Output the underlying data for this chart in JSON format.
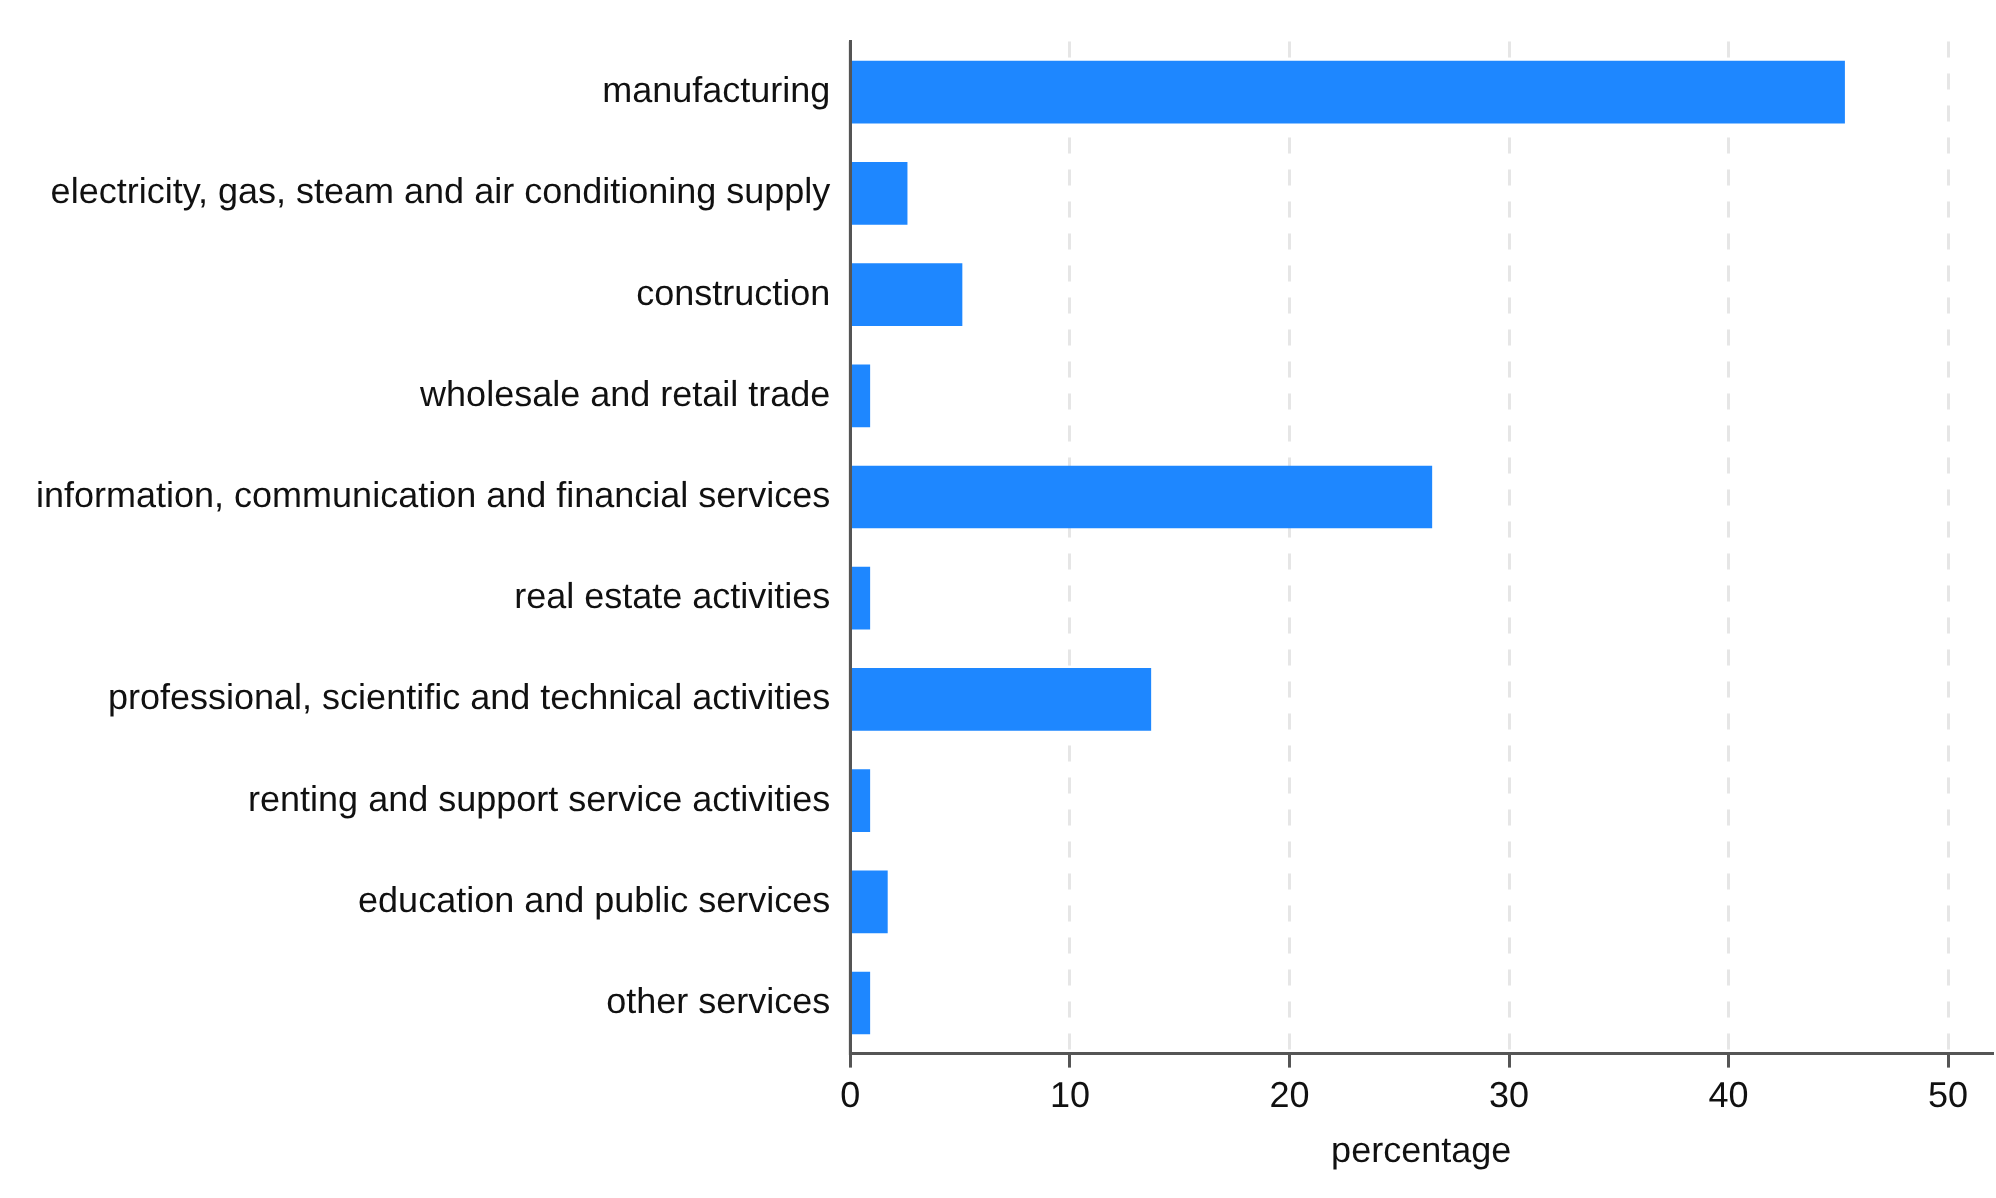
{
  "chart_data": {
    "type": "bar",
    "orientation": "horizontal",
    "xlabel": "percentage",
    "categories": [
      "manufacturing",
      "electricity, gas, steam and air conditioning supply",
      "construction",
      "wholesale and retail trade",
      "information, communication and financial services",
      "real estate activities",
      "professional, scientific and technical activities",
      "renting and support service activities",
      "education and public services",
      "other services"
    ],
    "values": [
      45.3,
      2.6,
      5.1,
      0.9,
      26.5,
      0.9,
      13.7,
      0.9,
      1.7,
      0.9
    ],
    "color": "#1e87ff",
    "xlim": [
      0,
      52
    ],
    "xticks": [
      0,
      10,
      20,
      30,
      40,
      50
    ],
    "grid": "x",
    "legend": false
  }
}
